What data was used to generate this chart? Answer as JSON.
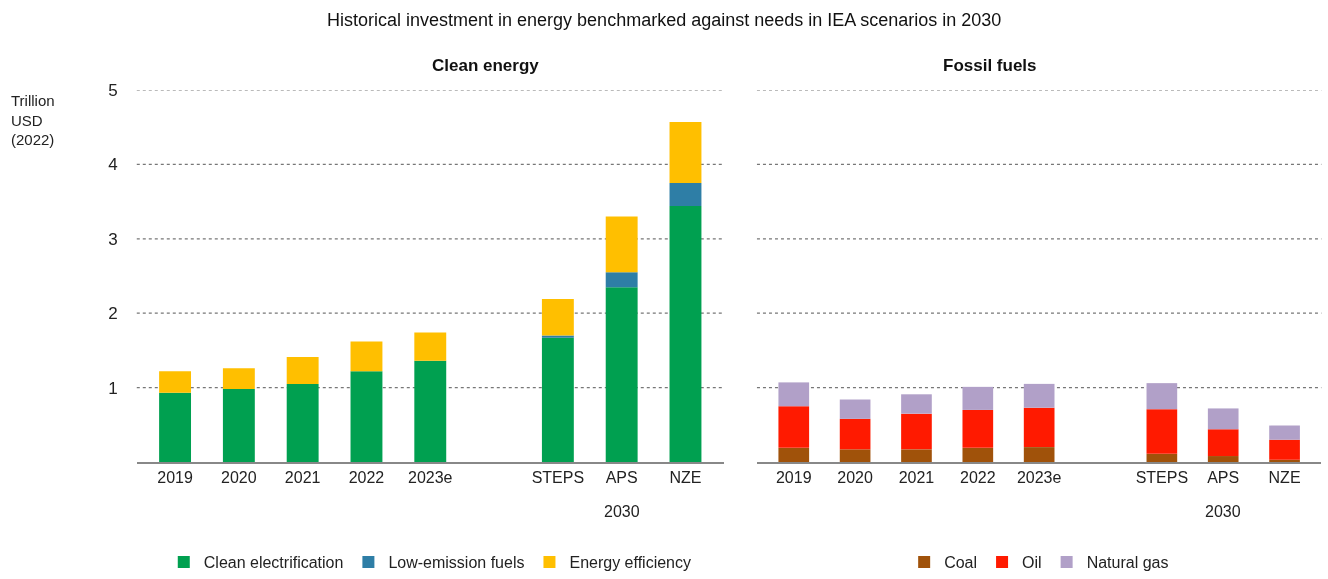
{
  "chart_data": [
    {
      "type": "bar",
      "title": "Historical investment in energy benchmarked against needs in IEA scenarios in 2030",
      "subtitle": "Clean energy",
      "ylabel": "Trillion USD (2022)",
      "categories": [
        "2019",
        "2020",
        "2021",
        "2022",
        "2023e",
        null,
        "STEPS",
        "APS",
        "NZE"
      ],
      "stacked": true,
      "series": [
        {
          "name": "Clean electrification",
          "color": "#00a050",
          "values": [
            0.93,
            0.98,
            1.05,
            1.22,
            1.36,
            null,
            1.67,
            2.35,
            3.44
          ]
        },
        {
          "name": "Low-emission fuels",
          "color": "#2e7ea6",
          "values": [
            0,
            0,
            0,
            0,
            0,
            null,
            0.03,
            0.2,
            0.31
          ]
        },
        {
          "name": "Energy efficiency",
          "color": "#ffbf00",
          "values": [
            0.29,
            0.28,
            0.36,
            0.4,
            0.38,
            null,
            0.49,
            0.75,
            0.82
          ]
        }
      ],
      "ylim": [
        0,
        5
      ],
      "yticks": [
        1,
        2,
        3,
        4,
        5
      ],
      "grid": "y",
      "legend": "bottom",
      "annotations": [
        "2030"
      ]
    },
    {
      "type": "bar",
      "subtitle": "Fossil fuels",
      "categories": [
        "2019",
        "2020",
        "2021",
        "2022",
        "2023e",
        null,
        "STEPS",
        "APS",
        "NZE"
      ],
      "stacked": true,
      "series": [
        {
          "name": "Coal",
          "color": "#a0520a",
          "values": [
            0.19,
            0.17,
            0.17,
            0.19,
            0.2,
            null,
            0.11,
            0.08,
            0.03
          ]
        },
        {
          "name": "Oil",
          "color": "#ff1a00",
          "values": [
            0.56,
            0.41,
            0.48,
            0.51,
            0.53,
            null,
            0.6,
            0.36,
            0.27
          ]
        },
        {
          "name": "Natural gas",
          "color": "#b1a0c8",
          "values": [
            0.32,
            0.26,
            0.26,
            0.31,
            0.32,
            null,
            0.35,
            0.28,
            0.19
          ]
        }
      ],
      "ylim": [
        0,
        5
      ],
      "yticks": [
        1,
        2,
        3,
        4,
        5
      ],
      "grid": "y",
      "legend": "bottom",
      "tick_labels": "x",
      "annotations": [
        "2030"
      ]
    }
  ]
}
